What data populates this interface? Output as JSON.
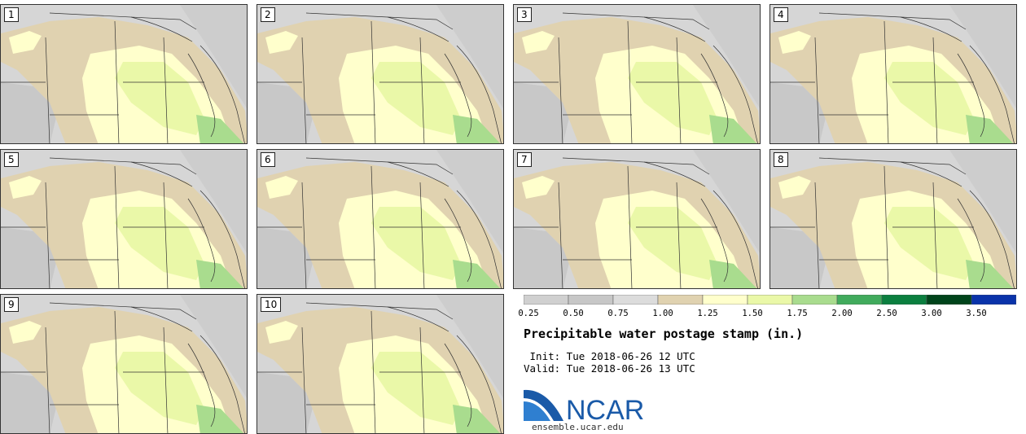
{
  "panels": [
    {
      "label": "1"
    },
    {
      "label": "2"
    },
    {
      "label": "3"
    },
    {
      "label": "4"
    },
    {
      "label": "5"
    },
    {
      "label": "6"
    },
    {
      "label": "7"
    },
    {
      "label": "8"
    },
    {
      "label": "9"
    },
    {
      "label": "10"
    }
  ],
  "colorbar": {
    "labels": [
      "0.25",
      "0.50",
      "0.75",
      "1.00",
      "1.25",
      "1.50",
      "1.75",
      "2.00",
      "2.50",
      "3.00",
      "3.50"
    ],
    "colors": [
      "#d0d0d0",
      "#c7c7c7",
      "#dcdcdc",
      "#e0d2b0",
      "#ffffcc",
      "#eaf8a8",
      "#a9dc8e",
      "#41ab5d",
      "#0b7f3f",
      "#00441b",
      "#0a33aa"
    ]
  },
  "info": {
    "title": "Precipitable water postage stamp (in.)",
    "init": " Init: Tue 2018-06-26 12 UTC",
    "valid": "Valid: Tue 2018-06-26 13 UTC"
  },
  "logo": {
    "text": "NCAR",
    "url": "ensemble.ucar.edu",
    "color": "#1a5aa8"
  }
}
